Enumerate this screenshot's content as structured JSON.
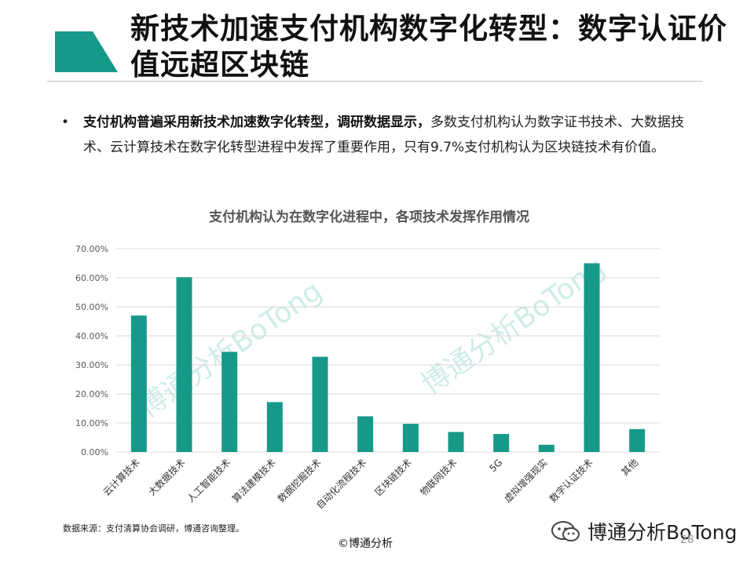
{
  "title": "新技术加速支付机构数字化转型：数字认证价值远超区块链",
  "bullet": {
    "bold_part": "支付机构普遍采用新技术加速数字化转型，调研数据显示，",
    "normal_part": "多数支付机构认为数字证书技术、大数据技术、云计算技术在数字化转型进程中发挥了重要作用，只有9.7%支付机构认为区块链技术有价值。"
  },
  "colors": {
    "accent": "#17998a",
    "bar": "#17998a",
    "grid": "#d9d9d9",
    "watermark": "#a8dcd4"
  },
  "watermark_text": "博通分析BoTong",
  "chart_data": {
    "type": "bar",
    "title": "支付机构认为在数字化进程中，各项技术发挥作用情况",
    "categories": [
      "云计算技术",
      "大数据技术",
      "人工智能技术",
      "算法建模技术",
      "数据挖掘技术",
      "自动化流程技术",
      "区块链技术",
      "物联网技术",
      "5G",
      "虚拟增强现实",
      "数字认证技术",
      "其他"
    ],
    "values": [
      47.0,
      60.2,
      34.5,
      17.2,
      32.8,
      12.3,
      9.7,
      6.9,
      6.2,
      2.5,
      65.0,
      7.9
    ],
    "ylim": [
      0,
      70
    ],
    "yticks": [
      "0.00%",
      "10.00%",
      "20.00%",
      "30.00%",
      "40.00%",
      "50.00%",
      "60.00%",
      "70.00%"
    ],
    "grid": true,
    "legend": "none"
  },
  "source": "数据来源：支付清算协会调研，博通咨询整理。",
  "copyright": "©博通分析",
  "wechat_label": "博通分析BoTong",
  "page_number": "28"
}
